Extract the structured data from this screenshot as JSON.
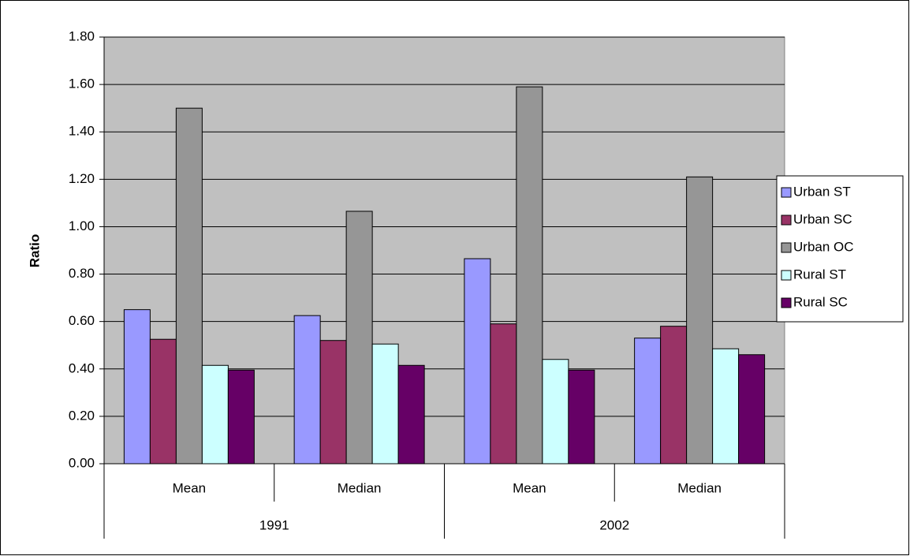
{
  "chart_data": {
    "type": "bar",
    "y_label": "Ratio",
    "categories": [
      "Mean",
      "Median",
      "Mean",
      "Median"
    ],
    "category_groups": [
      "1991",
      "2002"
    ],
    "series": [
      {
        "name": "Urban ST",
        "color": "#9999ff",
        "values": [
          0.65,
          0.625,
          0.865,
          0.53
        ]
      },
      {
        "name": "Urban SC",
        "color": "#993366",
        "values": [
          0.525,
          0.52,
          0.59,
          0.58
        ]
      },
      {
        "name": "Urban OC",
        "color": "#969696",
        "values": [
          1.5,
          1.065,
          1.59,
          1.21
        ]
      },
      {
        "name": "Rural ST",
        "color": "#ccffff",
        "values": [
          0.415,
          0.505,
          0.44,
          0.485
        ]
      },
      {
        "name": "Rural SC",
        "color": "#660066",
        "values": [
          0.395,
          0.415,
          0.395,
          0.46
        ]
      }
    ],
    "ylim": [
      0,
      1.8
    ],
    "yticks": [
      {
        "value": 0,
        "label": "0.00"
      },
      {
        "value": 0.2,
        "label": "0.20"
      },
      {
        "value": 0.4,
        "label": "0.40"
      },
      {
        "value": 0.6,
        "label": "0.60"
      },
      {
        "value": 0.8,
        "label": "0.80"
      },
      {
        "value": 1,
        "label": "1.00"
      },
      {
        "value": 1.2,
        "label": "1.20"
      },
      {
        "value": 1.4,
        "label": "1.40"
      },
      {
        "value": 1.6,
        "label": "1.60"
      },
      {
        "value": 1.8,
        "label": "1.80"
      }
    ],
    "grid": true,
    "plot_background": "#c0c0c0",
    "legend": "right"
  }
}
